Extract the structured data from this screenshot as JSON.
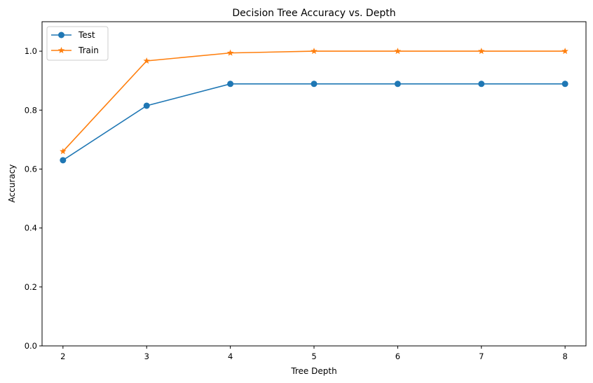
{
  "chart_data": {
    "type": "line",
    "title": "Decision Tree Accuracy vs. Depth",
    "xlabel": "Tree Depth",
    "ylabel": "Accuracy",
    "x": [
      2,
      3,
      4,
      5,
      6,
      7,
      8
    ],
    "xlim": [
      1.75,
      8.25
    ],
    "ylim": [
      0.0,
      1.1
    ],
    "xticks": [
      "2",
      "3",
      "4",
      "5",
      "6",
      "7",
      "8"
    ],
    "yticks": [
      "0.0",
      "0.2",
      "0.4",
      "0.6",
      "0.8",
      "1.0"
    ],
    "grid": false,
    "legend_position": "top-left",
    "series": [
      {
        "name": "Test",
        "color": "#1f77b4",
        "marker": "circle",
        "values": [
          0.63,
          0.815,
          0.889,
          0.889,
          0.889,
          0.889,
          0.889
        ]
      },
      {
        "name": "Train",
        "color": "#ff7f0e",
        "marker": "star",
        "values": [
          0.66,
          0.967,
          0.994,
          1.0,
          1.0,
          1.0,
          1.0
        ]
      }
    ]
  }
}
